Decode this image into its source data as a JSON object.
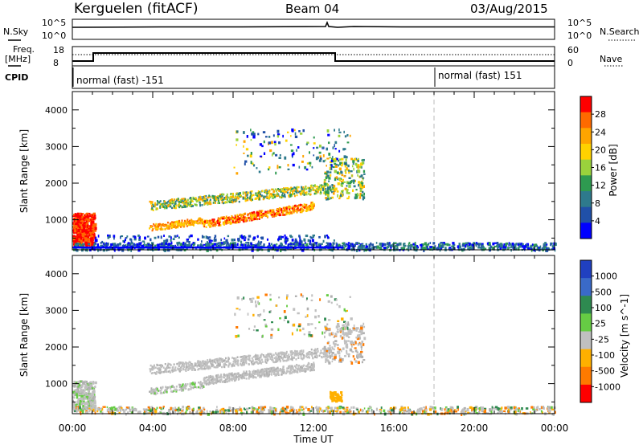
{
  "header": {
    "station": "Kerguelen (fitACF)",
    "beam": "Beam 04",
    "date": "03/Aug/2015"
  },
  "top_panels": {
    "nsky_label": "N.Sky",
    "nsearch_label": "N.Search",
    "nsky_ticks": [
      "10^5",
      "10^0"
    ],
    "nsearch_ticks": [
      "10^5",
      "10^0"
    ],
    "freq_label_line1": "Freq.",
    "freq_label_line2": "[MHz]",
    "freq_ticks": [
      "18",
      "8"
    ],
    "nave_label": "Nave",
    "nave_ticks": [
      "60",
      "0"
    ],
    "cpid_label": "CPID",
    "cpid_segments": [
      {
        "text": "normal (fast) -151"
      },
      {
        "text": "normal (fast) 151"
      }
    ]
  },
  "x_axis": {
    "ticks": [
      "00:00",
      "04:00",
      "08:00",
      "12:00",
      "16:00",
      "20:00",
      "00:00"
    ],
    "label": "Time UT"
  },
  "chart_data": [
    {
      "type": "heatmap",
      "title": "",
      "ylabel": "Slant Range [km]",
      "yticks": [
        "4000",
        "3000",
        "2000",
        "1000"
      ],
      "ylim": [
        180,
        4500
      ],
      "xlim_hours": [
        0,
        24
      ],
      "colorbar": {
        "label": "Power [dB]",
        "ticks": [
          "28",
          "24",
          "20",
          "16",
          "12",
          "8",
          "4"
        ],
        "colors": [
          "#ff0000",
          "#ff6a00",
          "#ffa500",
          "#ffd200",
          "#9ad23c",
          "#2e9a50",
          "#2e7a8c",
          "#2050a8",
          "#0000ff"
        ]
      },
      "dashed_marker_hour": 18
    },
    {
      "type": "heatmap",
      "title": "",
      "ylabel": "Slant Range [km]",
      "yticks": [
        "4000",
        "3000",
        "2000",
        "1000"
      ],
      "ylim": [
        180,
        4500
      ],
      "xlim_hours": [
        0,
        24
      ],
      "colorbar": {
        "label": "Velocity [m s^-1]",
        "ticks": [
          "1000",
          "500",
          "100",
          "25",
          "-25",
          "-100",
          "-500",
          "-1000"
        ],
        "colors": [
          "#2040c0",
          "#3a6ac8",
          "#2e8a50",
          "#66cc44",
          "#c0c0c0",
          "#ffb000",
          "#ff7a00",
          "#ff0000"
        ]
      },
      "dashed_marker_hour": 18
    }
  ]
}
